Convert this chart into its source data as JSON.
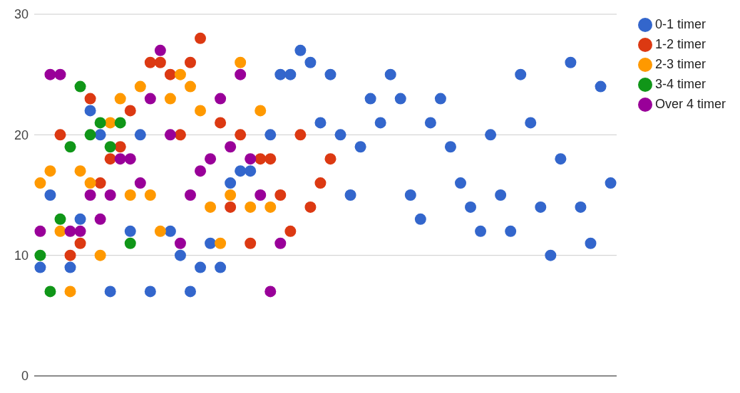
{
  "chart_data": {
    "type": "scatter",
    "categories": [
      null,
      null,
      null,
      null,
      null,
      null,
      null,
      null,
      null,
      null,
      null,
      null,
      null,
      null,
      null,
      null,
      null,
      null,
      null,
      null,
      null,
      null,
      null,
      null,
      null,
      null,
      null,
      null,
      null,
      null,
      null,
      null,
      null,
      null,
      null,
      null,
      null,
      null,
      null,
      null,
      null,
      null,
      null,
      null,
      null,
      null,
      null,
      null,
      null,
      null,
      null,
      null,
      null,
      null,
      null,
      null,
      null,
      null
    ],
    "series": [
      {
        "name": "0-1 timer",
        "color": "#3366cc",
        "values": [
          9,
          15,
          null,
          9,
          13,
          22,
          20,
          7,
          null,
          12,
          20,
          7,
          null,
          12,
          10,
          7,
          9,
          11,
          9,
          16,
          17,
          17,
          null,
          20,
          25,
          25,
          27,
          26,
          21,
          25,
          20,
          15,
          19,
          23,
          21,
          25,
          23,
          15,
          13,
          21,
          23,
          19,
          16,
          14,
          12,
          20,
          15,
          12,
          25,
          21,
          14,
          10,
          18,
          26,
          14,
          11,
          24,
          16
        ]
      },
      {
        "name": "1-2 timer",
        "color": "#dc3912",
        "values": [
          null,
          null,
          20,
          10,
          11,
          23,
          16,
          18,
          19,
          22,
          null,
          26,
          26,
          25,
          20,
          26,
          28,
          null,
          21,
          14,
          20,
          11,
          18,
          18,
          15,
          12,
          20,
          14,
          16,
          18,
          null,
          null,
          null,
          null,
          null,
          null,
          null,
          null,
          null,
          null,
          null,
          null,
          null,
          null,
          null,
          null,
          null,
          null,
          null,
          null,
          null,
          null,
          null,
          null,
          null,
          null,
          null,
          null
        ]
      },
      {
        "name": "2-3 timer",
        "color": "#ff9900",
        "values": [
          16,
          17,
          12,
          7,
          17,
          16,
          10,
          21,
          23,
          15,
          24,
          15,
          12,
          23,
          25,
          24,
          22,
          14,
          11,
          15,
          26,
          14,
          22,
          14,
          null,
          null,
          null,
          null,
          null,
          null,
          null,
          null,
          null,
          null,
          null,
          null,
          null,
          null,
          null,
          null,
          null,
          null,
          null,
          null,
          null,
          null,
          null,
          null,
          null,
          null,
          null,
          null,
          null,
          null,
          null,
          null,
          null,
          null
        ]
      },
      {
        "name": "3-4 timer",
        "color": "#109618",
        "values": [
          10,
          7,
          13,
          19,
          24,
          20,
          21,
          19,
          21,
          11,
          null,
          null,
          null,
          null,
          null,
          null,
          null,
          null,
          null,
          null,
          null,
          null,
          null,
          null,
          null,
          null,
          null,
          null,
          null,
          null,
          null,
          null,
          null,
          null,
          null,
          null,
          null,
          null,
          null,
          null,
          null,
          null,
          null,
          null,
          null,
          null,
          null,
          null,
          null,
          null,
          null,
          null,
          null,
          null,
          null,
          null,
          null,
          null
        ]
      },
      {
        "name": "Over 4 timer",
        "color": "#990099",
        "values": [
          12,
          25,
          25,
          12,
          12,
          15,
          13,
          15,
          18,
          18,
          16,
          23,
          27,
          20,
          11,
          15,
          17,
          18,
          23,
          19,
          25,
          18,
          15,
          7,
          11,
          null,
          null,
          null,
          null,
          null,
          null,
          null,
          null,
          null,
          null,
          null,
          null,
          null,
          null,
          null,
          null,
          null,
          null,
          null,
          null,
          null,
          null,
          null,
          null,
          null,
          null,
          null,
          null,
          null,
          null,
          null,
          null,
          null
        ]
      }
    ],
    "ylim": [
      0,
      30
    ],
    "yticks": [
      0,
      10,
      20,
      30
    ],
    "grid": "y",
    "legend": "top right",
    "marker": "circle"
  }
}
